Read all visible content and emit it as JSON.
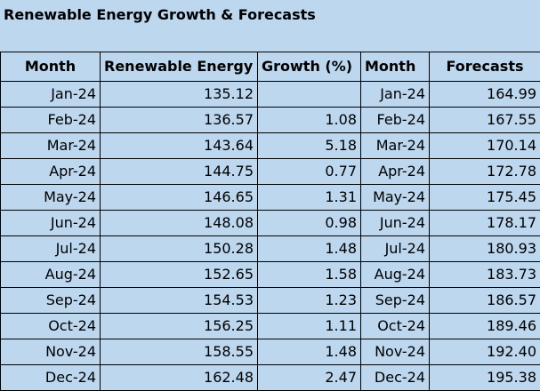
{
  "title": "Renewable Energy Growth & Forecasts",
  "headers": [
    "Month",
    "Renewable Energy",
    "Growth (%)",
    "Month",
    "Forecasts"
  ],
  "rows": [
    [
      "Jan-24",
      "135.12",
      "",
      "Jan-24",
      "164.99"
    ],
    [
      "Feb-24",
      "136.57",
      "1.08",
      "Feb-24",
      "167.55"
    ],
    [
      "Mar-24",
      "143.64",
      "5.18",
      "Mar-24",
      "170.14"
    ],
    [
      "Apr-24",
      "144.75",
      "0.77",
      "Apr-24",
      "172.78"
    ],
    [
      "May-24",
      "146.65",
      "1.31",
      "May-24",
      "175.45"
    ],
    [
      "Jun-24",
      "148.08",
      "0.98",
      "Jun-24",
      "178.17"
    ],
    [
      "Jul-24",
      "150.28",
      "1.48",
      "Jul-24",
      "180.93"
    ],
    [
      "Aug-24",
      "152.65",
      "1.58",
      "Aug-24",
      "183.73"
    ],
    [
      "Sep-24",
      "154.53",
      "1.23",
      "Sep-24",
      "186.57"
    ],
    [
      "Oct-24",
      "156.25",
      "1.11",
      "Oct-24",
      "189.46"
    ],
    [
      "Nov-24",
      "158.55",
      "1.48",
      "Nov-24",
      "192.40"
    ],
    [
      "Dec-24",
      "162.48",
      "2.47",
      "Dec-24",
      "195.38"
    ]
  ]
}
